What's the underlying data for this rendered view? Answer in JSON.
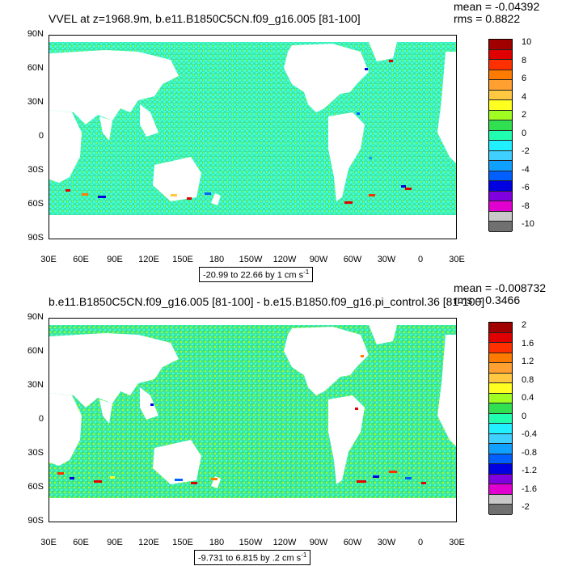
{
  "top_panel": {
    "title": "VVEL at z=1968.9m, b.e11.B1850C5CN.f09_g16.005 [81-100]",
    "mean": "mean = -0.04392",
    "rms": "rms = 0.8822",
    "range_label": "-20.99 to 22.66 by 1 cm s",
    "range_sup": "-1",
    "colorbar_labels": [
      "10",
      "8",
      "6",
      "4",
      "2",
      "0",
      "-2",
      "-4",
      "-6",
      "-8",
      "-10"
    ]
  },
  "bottom_panel": {
    "title": "b.e11.B1850C5CN.f09_g16.005 [81-100] - b.e15.B1850.f09_g16.pi_control.36 [81-100]",
    "mean": "mean = -0.008732",
    "rms": "rms = 0.3466",
    "range_label": "-9.731 to 6.815 by .2 cm s",
    "range_sup": "-1",
    "colorbar_labels": [
      "2",
      "1.6",
      "1.2",
      "0.8",
      "0.4",
      "0",
      "-0.4",
      "-0.8",
      "-1.2",
      "-1.6",
      "-2"
    ]
  },
  "lat_labels": [
    "90N",
    "60N",
    "30N",
    "0",
    "30S",
    "60S",
    "90S"
  ],
  "lon_labels": [
    "30E",
    "60E",
    "90E",
    "120E",
    "150E",
    "180",
    "150W",
    "120W",
    "90W",
    "60W",
    "30W",
    "0",
    "30E"
  ],
  "colors": {
    "ocean": "#3fe6a0",
    "cyan": "#40ffe0",
    "land": "#ffffff",
    "colorbar": [
      "#a00000",
      "#e00000",
      "#ff3000",
      "#ff7a00",
      "#ffa030",
      "#ffc840",
      "#ffff20",
      "#a0ff20",
      "#30e050",
      "#20ffb0",
      "#20f0ff",
      "#40d0ff",
      "#10a0ff",
      "#0060ff",
      "#0000e0",
      "#8000e0",
      "#e000d0",
      "#c8c8c8",
      "#707070"
    ]
  }
}
